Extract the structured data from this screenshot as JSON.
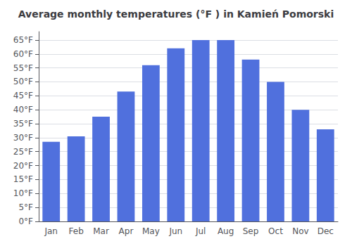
{
  "chart_data": {
    "type": "bar",
    "title": "Average monthly temperatures (°F ) in Kamień Pomorski",
    "categories": [
      "Jan",
      "Feb",
      "Mar",
      "Apr",
      "May",
      "Jun",
      "Jul",
      "Aug",
      "Sep",
      "Oct",
      "Nov",
      "Dec"
    ],
    "values": [
      28.5,
      30.5,
      37.5,
      46.5,
      56.0,
      62.0,
      65.0,
      65.0,
      58.0,
      50.0,
      40.0,
      33.0
    ],
    "ylim": [
      0,
      68
    ],
    "yticks": [
      {
        "value": 0,
        "label": "0°F"
      },
      {
        "value": 5,
        "label": "5°F"
      },
      {
        "value": 10,
        "label": "10°F"
      },
      {
        "value": 15,
        "label": "15°F"
      },
      {
        "value": 20,
        "label": "20°F"
      },
      {
        "value": 25,
        "label": "25°F"
      },
      {
        "value": 30,
        "label": "30°F"
      },
      {
        "value": 35,
        "label": "35°F"
      },
      {
        "value": 40,
        "label": "40°F"
      },
      {
        "value": 45,
        "label": "45°F"
      },
      {
        "value": 50,
        "label": "50°F"
      },
      {
        "value": 55,
        "label": "55°F"
      },
      {
        "value": 60,
        "label": "60°F"
      },
      {
        "value": 65,
        "label": "65°F"
      }
    ],
    "grid": true
  }
}
